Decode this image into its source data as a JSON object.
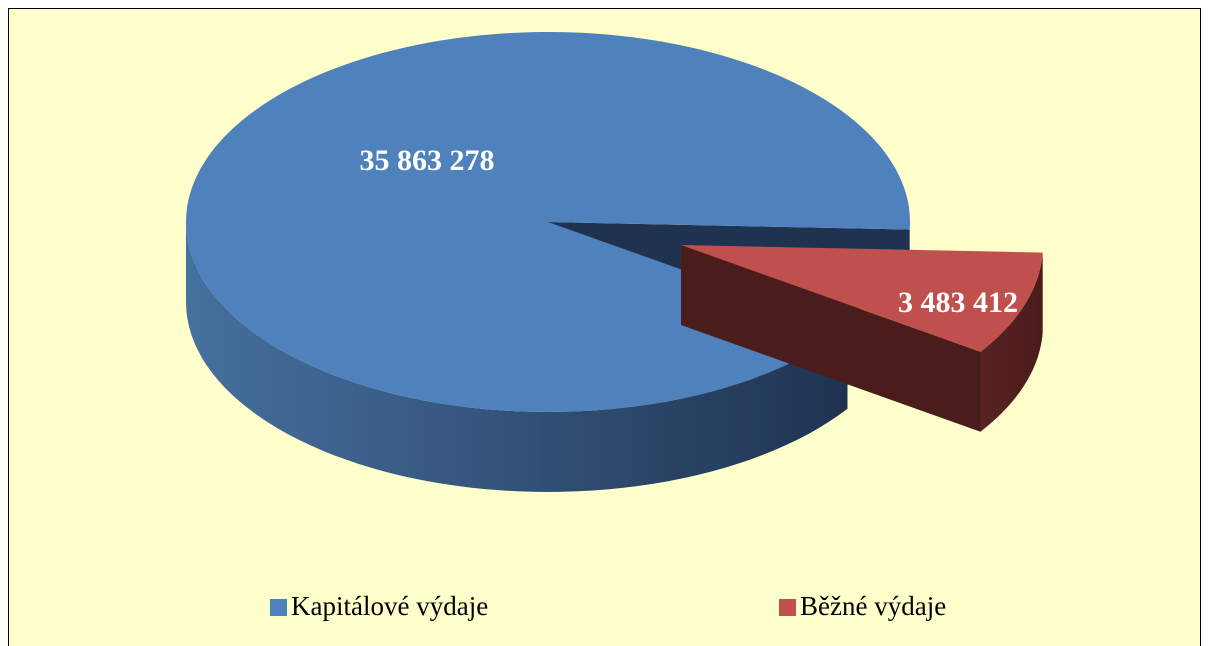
{
  "chart_data": {
    "type": "pie",
    "categories": [
      "Kapitálové výdaje",
      "Běžné výdaje"
    ],
    "values": [
      35863278,
      3483412
    ],
    "value_labels": [
      "35 863 278",
      "3 483 412"
    ],
    "colors": [
      "#4f81bd",
      "#c0504d"
    ],
    "legend": "bottom"
  }
}
